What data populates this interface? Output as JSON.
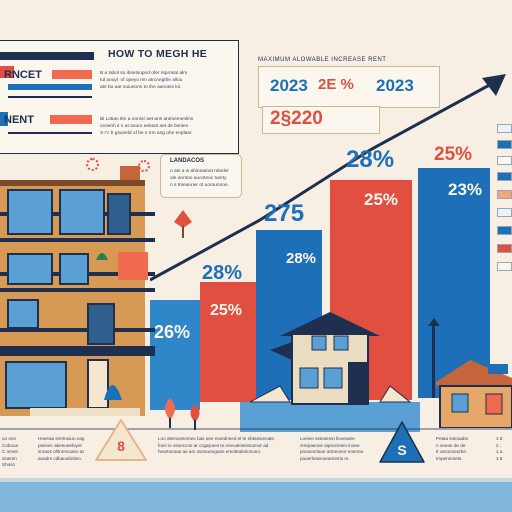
{
  "header": {
    "title": "HOW TO MEGH HE",
    "label_rncet": "RNCET",
    "label_nent": "NENT",
    "desc_top": [
      "B a tabol so ibsetsopnd ofer rsprosat alm",
      "tul anuyl. of opeyo mn atrcnegthe allou",
      "ate bu aar suiunonn to the aanoeis loi."
    ],
    "desc_mid": [
      "Bi  Lotian tim a nonior aet ans antmemenlins",
      "ceoenh it n at aouro eebsat aet de bsnleo",
      "S r'c b gsuneld of be s trm ang ohe enplaer."
    ]
  },
  "lanescap": {
    "title": "LANDACOS",
    "lines": [
      "o ats a w ahinnatoot mbelel",
      "ole anntoo aucoteuc tuerty",
      "n s tmeanner ot uorounnoe."
    ]
  },
  "max": {
    "title": "MAXIMUM ALOWABLE INCREASE RENT",
    "year_a": "2023",
    "middle": "2E %",
    "year_b": "2023",
    "amount": "2§220"
  },
  "chart_labels": {
    "pct_26": "26%",
    "pct_28_small": "28%",
    "pct_25_red": "25%",
    "num_275": "275",
    "pct_28_blue": "28%",
    "pct_28_top": "28%",
    "pct_25_tall": "25%",
    "pct_25_top": "25%",
    "pct_23": "23%"
  },
  "footer": {
    "badge_left": "8",
    "badge_right": "S",
    "col1": [
      "uo oon",
      "Coboua",
      "C omen",
      "Soeren",
      "Shosn"
    ],
    "col2": [
      "Hoeeaa smrtnoiuo eag",
      "pteinec abeeueeloyet",
      "sroaos ohlnrenoaeo at",
      "aoadrs cdbaoobinleo."
    ],
    "col3": [
      "Loo alemoesomeo bas oee moednned el te ebtaisoenate,",
      "foen ie ssoeccne ar cogepoes te oneoalosensomor ad",
      "heartoeoae ae am soneueogoan ereoleabnionuno."
    ],
    "col4": [
      "Loeieo ssteaemn llooeaeie",
      "ctrepaeooe aipeonnem inoee",
      "poooenrlaoe artoeoeor eoenoa",
      "paoerloseeoeareinrio m."
    ],
    "col5": [
      "Petaa sotoaabo",
      "n oneoe de de",
      "tr amooneorbe.",
      "Impennmets."
    ],
    "col6": [
      "1 8",
      "2 ,",
      "1 a",
      "1 6"
    ]
  },
  "colors": {
    "navy": "#1e2f4f",
    "blue": "#1d6fb8",
    "red": "#e04f3f",
    "cream": "#f7efe3",
    "strip": "#7fb6d9"
  }
}
